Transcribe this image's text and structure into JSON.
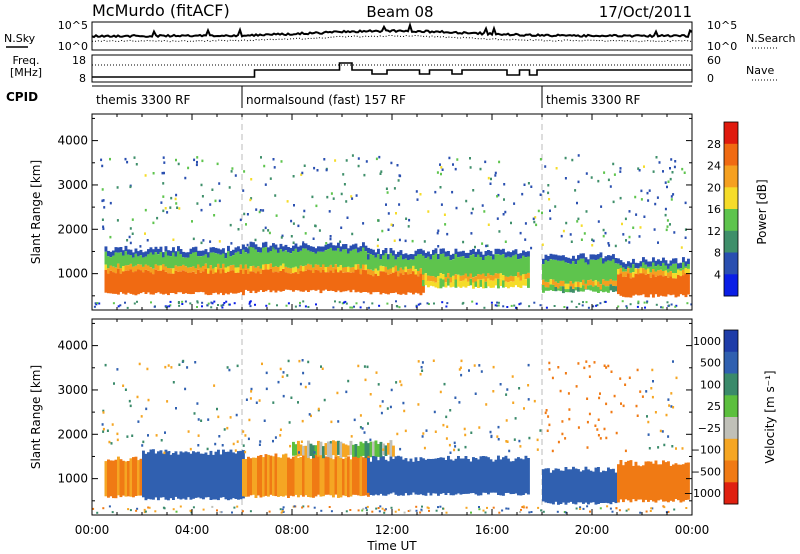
{
  "header": {
    "station": "McMurdo (fitACF)",
    "beam": "Beam 08",
    "date": "17/Oct/2011"
  },
  "noise_panel": {
    "left_label": "N.Sky",
    "right_label": "N.Search",
    "left_ticks": [
      "10^5",
      "10^0"
    ],
    "right_ticks": [
      "10^5",
      "10^0"
    ]
  },
  "freq_panel": {
    "left_label_1": "Freq.",
    "left_label_2": "[MHz]",
    "right_label": "Nave",
    "left_ticks": [
      "18",
      "8"
    ],
    "right_ticks": [
      "60",
      "0"
    ]
  },
  "cpid_panel": {
    "label": "CPID",
    "segments": [
      {
        "start_hour": 0,
        "end_hour": 6,
        "label": "themis 3300 RF"
      },
      {
        "start_hour": 6,
        "end_hour": 18,
        "label": "normalsound (fast) 157 RF"
      },
      {
        "start_hour": 18,
        "end_hour": 24,
        "label": "themis 3300 RF"
      }
    ]
  },
  "power_panel": {
    "ylabel": "Slant Range [km]",
    "colorbar_label": "Power [dB]",
    "colorbar_ticks": [
      "4",
      "8",
      "12",
      "16",
      "20",
      "24",
      "28"
    ],
    "colorbar_colors": [
      "#0a1ee6",
      "#2a4fb0",
      "#3f8f6a",
      "#5ec44d",
      "#f5dc2a",
      "#f5a020",
      "#f06a12",
      "#e01a0e"
    ]
  },
  "velocity_panel": {
    "ylabel": "Slant Range [km]",
    "colorbar_label": "Velocity [m s⁻¹]",
    "colorbar_ticks": [
      "1000",
      "500",
      "100",
      "25",
      "−25",
      "−100",
      "−500",
      "−1000"
    ],
    "colorbar_colors": [
      "#1e3ca8",
      "#3060b0",
      "#3a8a6a",
      "#5cbf3e",
      "#c0c0b8",
      "#f5a623",
      "#f07a14",
      "#e02010"
    ]
  },
  "x_axis": {
    "label": "Time UT",
    "ticks": [
      "00:00",
      "04:00",
      "08:00",
      "12:00",
      "16:00",
      "20:00",
      "00:00"
    ]
  },
  "chart_data": {
    "type": "heatmap",
    "title": "McMurdo (fitACF) Beam 08 17/Oct/2011",
    "xlabel": "Time UT",
    "ylabel": "Slant Range [km]",
    "xlim": [
      0,
      24
    ],
    "ylim": [
      180,
      4600
    ],
    "yticks": [
      1000,
      2000,
      3000,
      4000
    ],
    "mode_change_hours": [
      6,
      18
    ],
    "power_bands": [
      {
        "start_hour": 0.5,
        "end_hour": 6.0,
        "bottom_km": 550,
        "core_top_km": 1050,
        "top_km": 1550,
        "peak_db": 28
      },
      {
        "start_hour": 6.0,
        "end_hour": 11.0,
        "bottom_km": 600,
        "core_top_km": 1050,
        "top_km": 1650,
        "peak_db": 28
      },
      {
        "start_hour": 11.0,
        "end_hour": 13.2,
        "bottom_km": 550,
        "core_top_km": 1000,
        "top_km": 1500,
        "peak_db": 28
      },
      {
        "start_hour": 13.2,
        "end_hour": 17.5,
        "bottom_km": 700,
        "core_top_km": 850,
        "top_km": 1500,
        "peak_db": 18
      },
      {
        "start_hour": 18.0,
        "end_hour": 21.0,
        "bottom_km": 600,
        "core_top_km": 700,
        "top_km": 1400,
        "peak_db": 14
      },
      {
        "start_hour": 21.0,
        "end_hour": 23.9,
        "bottom_km": 500,
        "core_top_km": 950,
        "top_km": 1300,
        "peak_db": 28
      }
    ],
    "velocity_bands": [
      {
        "start_hour": 0.5,
        "end_hour": 2.0,
        "bottom_km": 600,
        "top_km": 1450,
        "velocity_ms": -100
      },
      {
        "start_hour": 2.0,
        "end_hour": 6.0,
        "bottom_km": 550,
        "top_km": 1600,
        "velocity_ms": 200
      },
      {
        "start_hour": 6.0,
        "end_hour": 11.0,
        "bottom_km": 600,
        "top_km": 1500,
        "velocity_ms": -100
      },
      {
        "start_hour": 8.0,
        "end_hour": 12.0,
        "bottom_km": 1500,
        "top_km": 1800,
        "velocity_ms": 0
      },
      {
        "start_hour": 11.0,
        "end_hour": 17.5,
        "bottom_km": 650,
        "top_km": 1450,
        "velocity_ms": 200
      },
      {
        "start_hour": 18.0,
        "end_hour": 21.0,
        "bottom_km": 450,
        "top_km": 1200,
        "velocity_ms": 200
      },
      {
        "start_hour": 21.0,
        "end_hour": 23.9,
        "bottom_km": 500,
        "top_km": 1350,
        "velocity_ms": -200
      }
    ]
  }
}
